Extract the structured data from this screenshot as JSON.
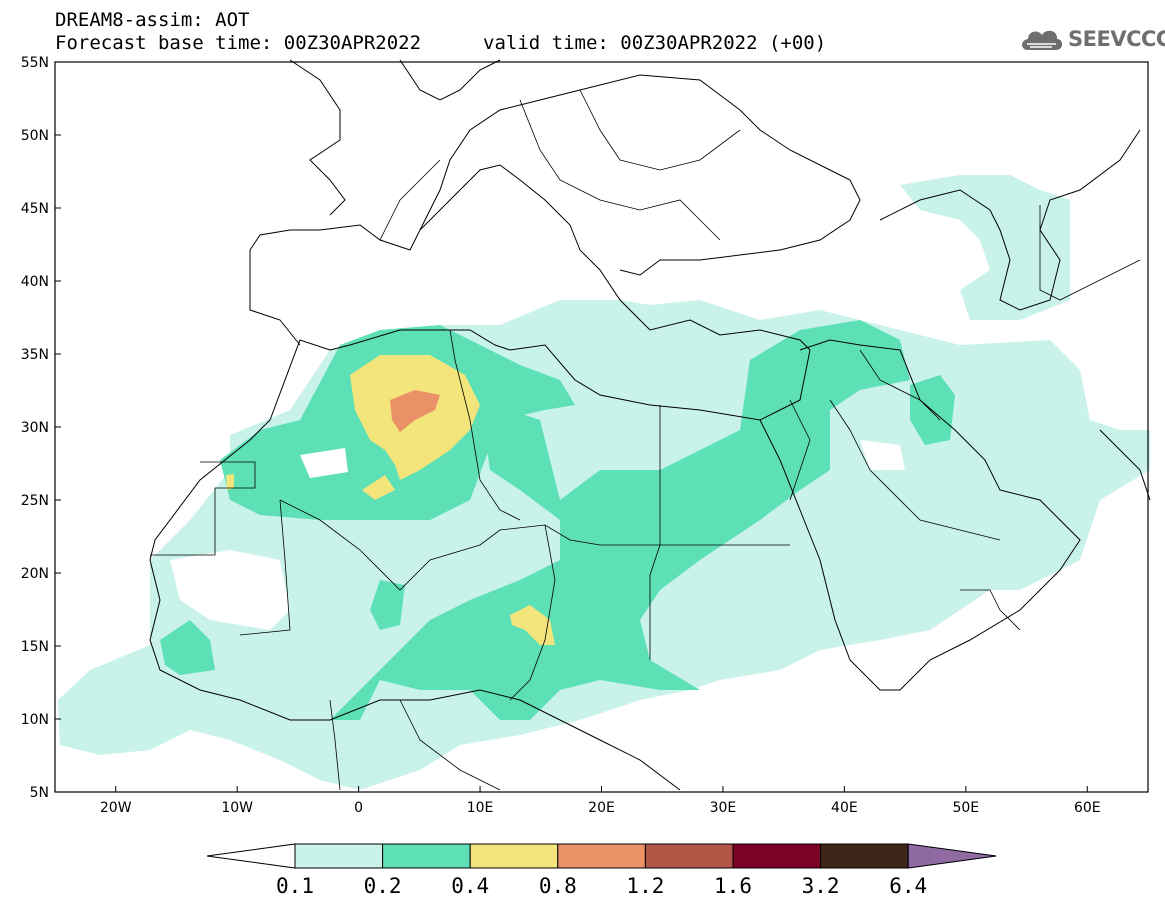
{
  "header": {
    "title": "DREAM8-assim: AOT",
    "base_time": "Forecast base time: 00Z30APR2022",
    "valid_time": "valid time: 00Z30APR2022 (+00)"
  },
  "logo": {
    "text": "SEEVCCC"
  },
  "map": {
    "lon_range": [
      -25,
      65
    ],
    "lat_range": [
      5,
      55
    ],
    "lat_ticks": [
      {
        "v": 55,
        "label": "55N"
      },
      {
        "v": 50,
        "label": "50N"
      },
      {
        "v": 45,
        "label": "45N"
      },
      {
        "v": 40,
        "label": "40N"
      },
      {
        "v": 35,
        "label": "35N"
      },
      {
        "v": 30,
        "label": "30N"
      },
      {
        "v": 25,
        "label": "25N"
      },
      {
        "v": 20,
        "label": "20N"
      },
      {
        "v": 15,
        "label": "15N"
      },
      {
        "v": 10,
        "label": "10N"
      },
      {
        "v": 5,
        "label": "5N"
      }
    ],
    "lon_ticks": [
      {
        "v": -20,
        "label": "20W"
      },
      {
        "v": -10,
        "label": "10W"
      },
      {
        "v": 0,
        "label": "0"
      },
      {
        "v": 10,
        "label": "10E"
      },
      {
        "v": 20,
        "label": "20E"
      },
      {
        "v": 30,
        "label": "30E"
      },
      {
        "v": 40,
        "label": "40E"
      },
      {
        "v": 50,
        "label": "50E"
      },
      {
        "v": 60,
        "label": "60E"
      }
    ]
  },
  "colorbar": {
    "levels": [
      "0.1",
      "0.2",
      "0.4",
      "0.8",
      "1.2",
      "1.6",
      "3.2",
      "6.4"
    ],
    "colors": [
      "#ffffff",
      "#c8f2ea",
      "#5ee0b7",
      "#f3e47b",
      "#eb9167",
      "#b25446",
      "#7d0027",
      "#3e2719",
      "#8f6aa3"
    ]
  }
}
